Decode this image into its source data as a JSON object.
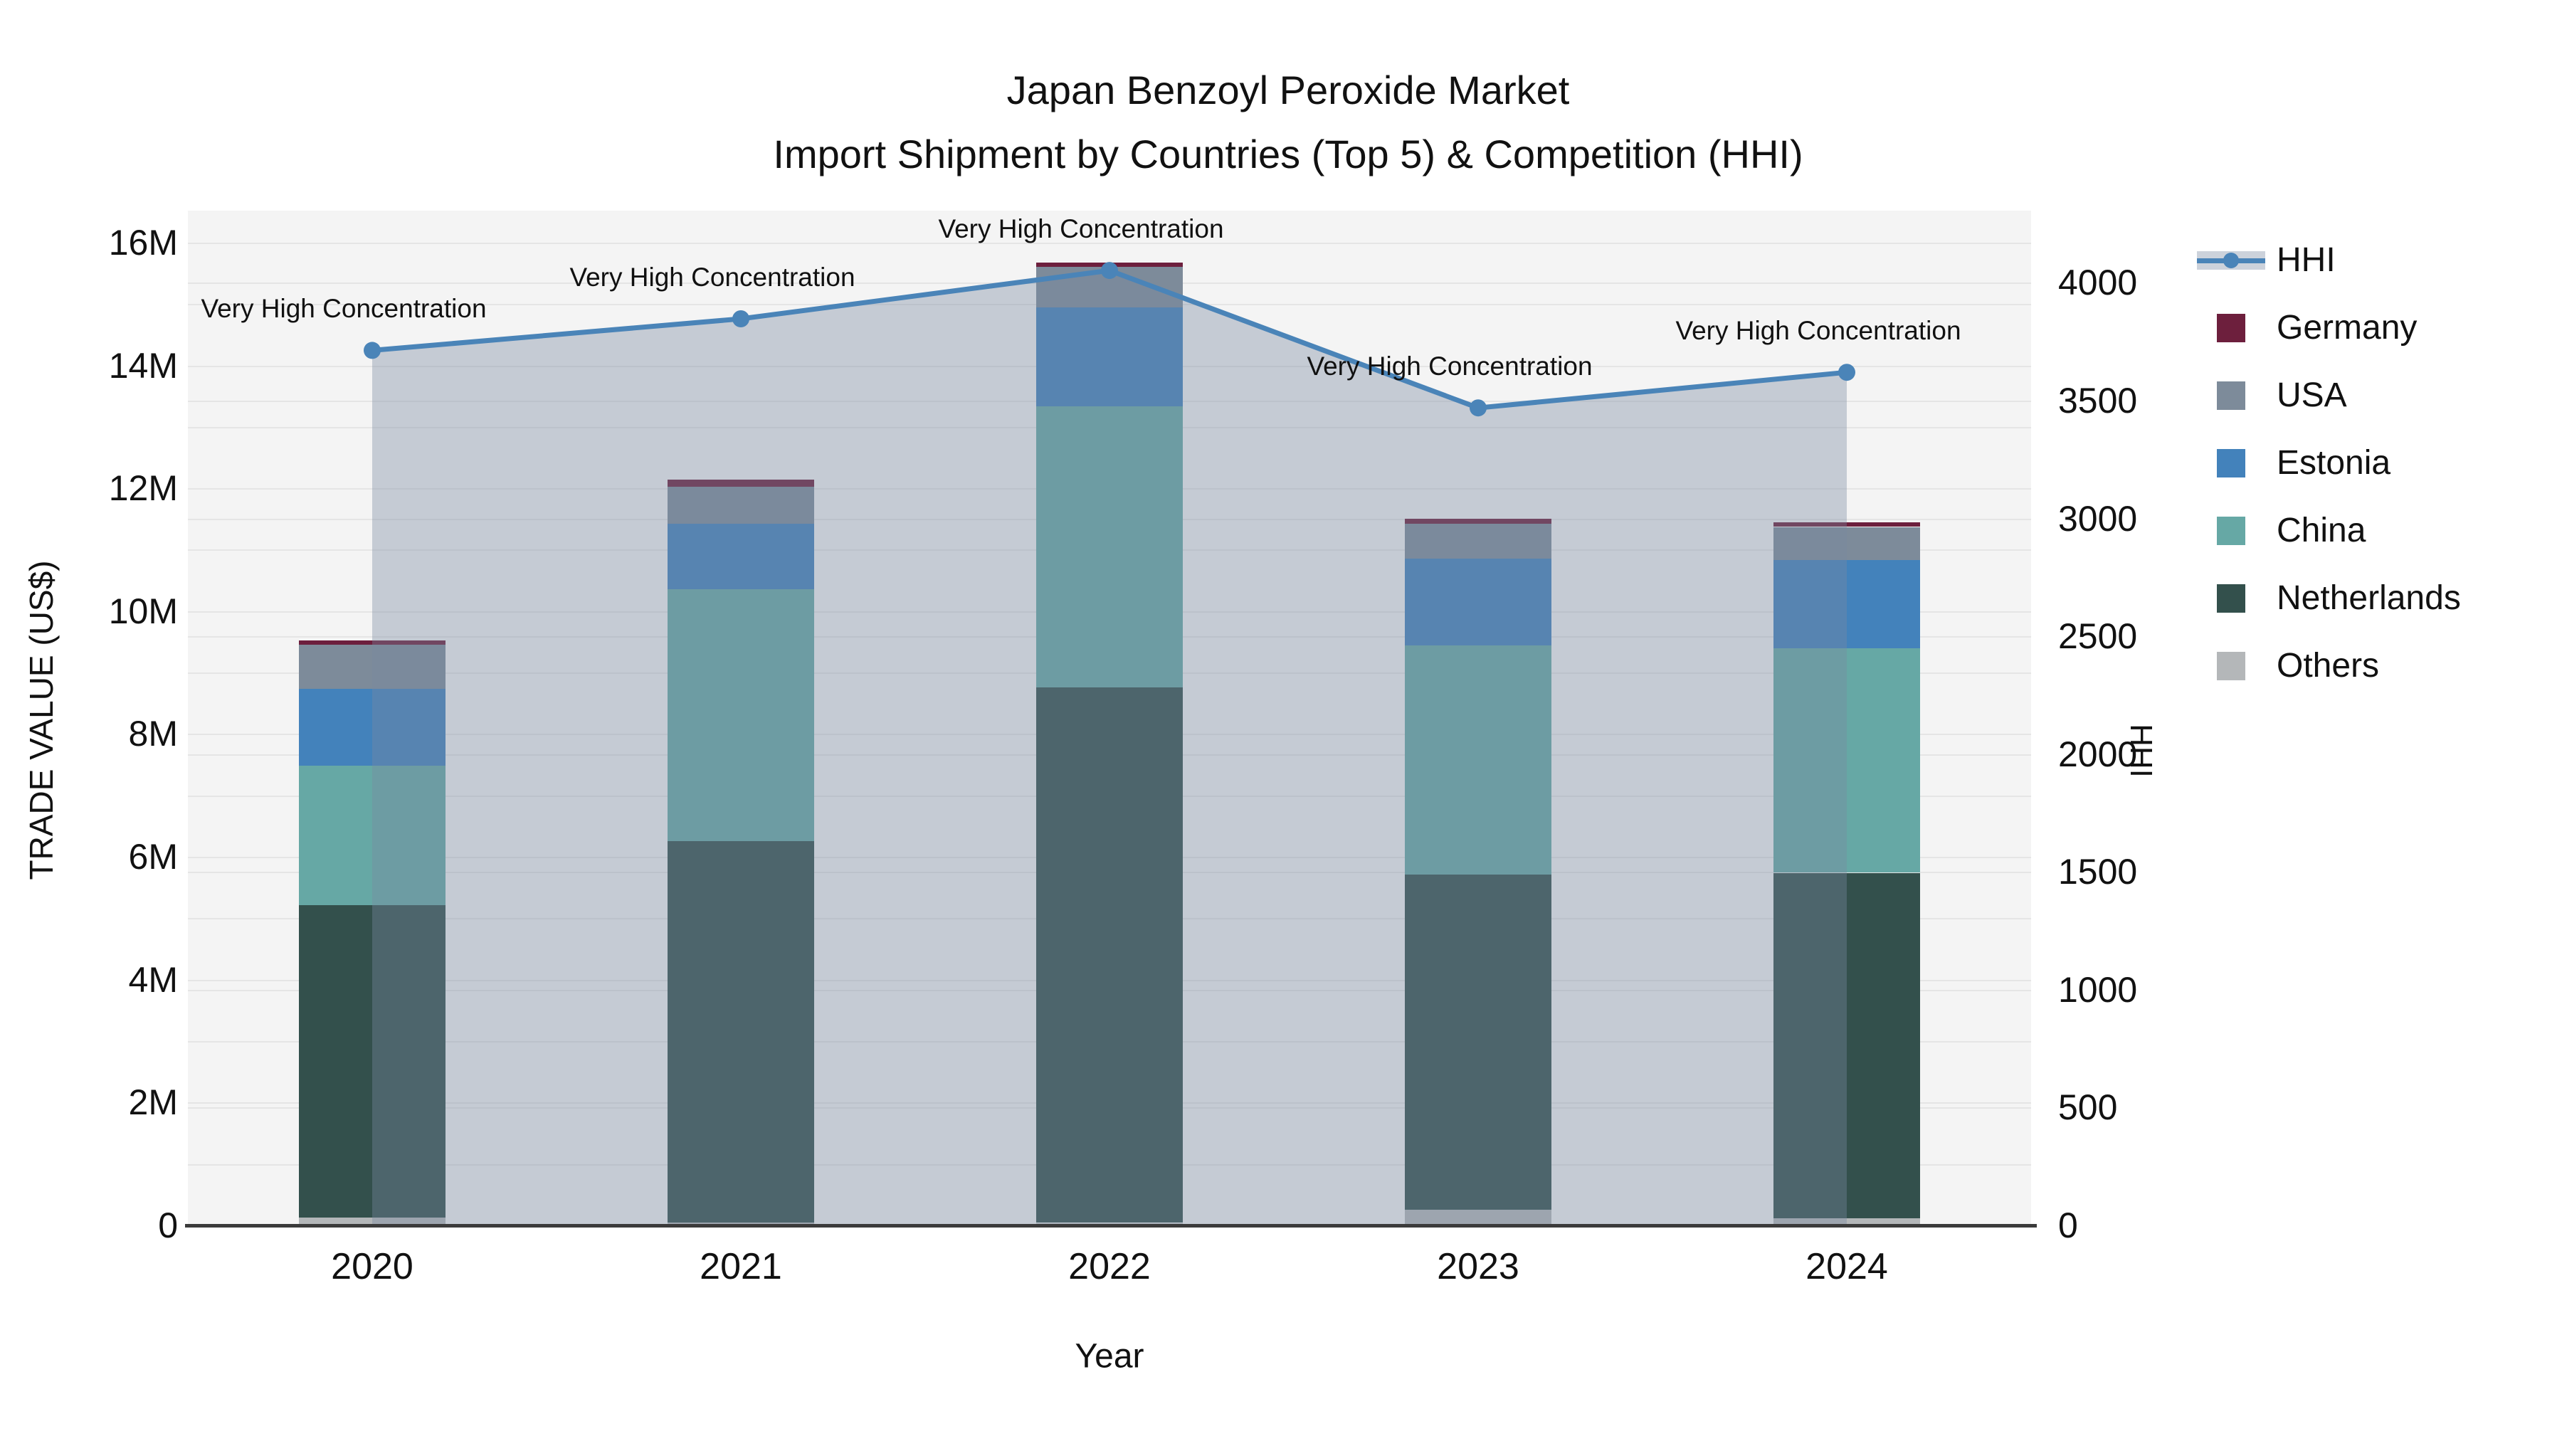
{
  "title": {
    "line1": "Japan Benzoyl Peroxide Market",
    "line2": "Import Shipment by Countries (Top 5) & Competition (HHI)"
  },
  "axes": {
    "left_title": "TRADE VALUE (US$)",
    "bottom_title": "Year",
    "right_title": "HHI"
  },
  "annotation_text": "Very High Concentration",
  "legend": [
    {
      "label": "HHI",
      "type": "line",
      "color": "#4a84b8"
    },
    {
      "label": "Germany",
      "type": "swatch",
      "color": "#6d1f3d"
    },
    {
      "label": "USA",
      "type": "swatch",
      "color": "#7d8b9a"
    },
    {
      "label": "Estonia",
      "type": "swatch",
      "color": "#4382bb"
    },
    {
      "label": "China",
      "type": "swatch",
      "color": "#66a8a5"
    },
    {
      "label": "Netherlands",
      "type": "swatch",
      "color": "#33504c"
    },
    {
      "label": "Others",
      "type": "swatch",
      "color": "#b4b7b9"
    }
  ],
  "chart_data": {
    "type": "combo: stacked bar (left axis) + line with area fill (right axis)",
    "title": "Japan Benzoyl Peroxide Market — Import Shipment by Countries (Top 5) & Competition (HHI)",
    "categories": [
      "2020",
      "2021",
      "2022",
      "2023",
      "2024"
    ],
    "bar_unit": "US$ millions (left axis, TRADE VALUE (US$))",
    "bar_stack_order_bottom_to_top": [
      "Others",
      "Netherlands",
      "China",
      "Estonia",
      "USA",
      "Germany"
    ],
    "bar_series": [
      {
        "name": "Others",
        "color": "#b4b7b9",
        "values": [
          0.13,
          0.05,
          0.04,
          0.25,
          0.12
        ]
      },
      {
        "name": "Netherlands",
        "color": "#33504c",
        "values": [
          5.08,
          6.21,
          8.72,
          5.46,
          5.62
        ]
      },
      {
        "name": "China",
        "color": "#66a8a5",
        "values": [
          2.27,
          4.1,
          4.58,
          3.73,
          3.66
        ]
      },
      {
        "name": "Estonia",
        "color": "#4382bb",
        "values": [
          1.25,
          1.06,
          1.61,
          1.41,
          1.43
        ]
      },
      {
        "name": "USA",
        "color": "#7d8b9a",
        "values": [
          0.72,
          0.61,
          0.66,
          0.57,
          0.54
        ]
      },
      {
        "name": "Germany",
        "color": "#6d1f3d",
        "values": [
          0.07,
          0.11,
          0.07,
          0.09,
          0.08
        ]
      }
    ],
    "bar_totals_millions": [
      9.52,
      12.14,
      15.68,
      11.51,
      11.45
    ],
    "line_series": {
      "name": "HHI",
      "axis": "right",
      "color": "#4a84b8",
      "area_fill": "rgba(122,136,160,0.38)",
      "values": [
        3713,
        3847,
        4052,
        3469,
        3620
      ]
    },
    "point_annotations": [
      "Very High Concentration",
      "Very High Concentration",
      "Very High Concentration",
      "Very High Concentration",
      "Very High Concentration"
    ],
    "left_axis": {
      "title": "TRADE VALUE (US$)",
      "tick_values_millions": [
        0,
        2,
        4,
        6,
        8,
        10,
        12,
        14,
        16
      ],
      "tick_labels": [
        "0",
        "2M",
        "4M",
        "6M",
        "8M",
        "10M",
        "12M",
        "14M",
        "16M"
      ],
      "range": [
        0,
        16.52
      ]
    },
    "right_axis": {
      "title": "HHI",
      "tick_values": [
        0,
        500,
        1000,
        1500,
        2000,
        2500,
        3000,
        3500,
        4000
      ],
      "range": [
        0,
        4306
      ]
    },
    "x_axis": {
      "title": "Year"
    },
    "legend_position": "top-right, vertical",
    "grid": true,
    "plot_background": "#f4f4f4"
  }
}
